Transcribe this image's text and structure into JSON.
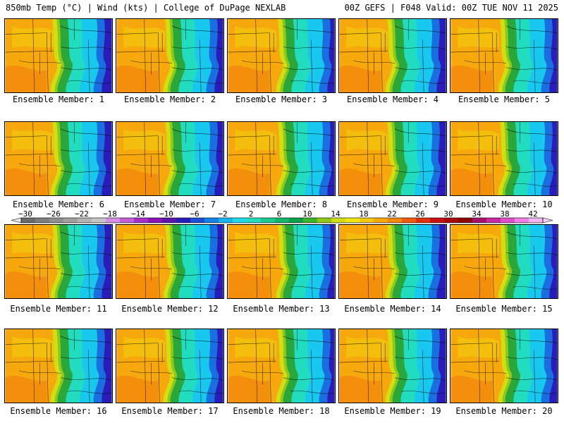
{
  "header": {
    "left": "850mb Temp (°C) | Wind (kts) | College of DuPage NEXLAB",
    "right": "00Z GEFS | F048 Valid: 00Z TUE NOV 11 2025"
  },
  "members": [
    "Ensemble Member: 1",
    "Ensemble Member: 2",
    "Ensemble Member: 3",
    "Ensemble Member: 4",
    "Ensemble Member: 5",
    "Ensemble Member: 6",
    "Ensemble Member: 7",
    "Ensemble Member: 8",
    "Ensemble Member: 9",
    "Ensemble Member: 10",
    "Ensemble Member: 11",
    "Ensemble Member: 12",
    "Ensemble Member: 13",
    "Ensemble Member: 14",
    "Ensemble Member: 15",
    "Ensemble Member: 16",
    "Ensemble Member: 17",
    "Ensemble Member: 18",
    "Ensemble Member: 19",
    "Ensemble Member: 20"
  ],
  "colorbar": {
    "labels": [
      "−30",
      "−26",
      "−22",
      "−18",
      "−14",
      "−10",
      "−6",
      "−2",
      "2",
      "6",
      "10",
      "14",
      "18",
      "22",
      "26",
      "30",
      "34",
      "38",
      "42"
    ],
    "colors": [
      "#6b6b6b",
      "#7d7d7d",
      "#8f8f8f",
      "#a1a1a1",
      "#b3b3b3",
      "#c5c5c5",
      "#d98ee6",
      "#c35fd6",
      "#aa2fc9",
      "#8a14b8",
      "#5a17a8",
      "#2a1cb8",
      "#1a4fd6",
      "#1582e6",
      "#18b4ee",
      "#1fd8e8",
      "#22dcc0",
      "#1ec98e",
      "#15b56a",
      "#0ea145",
      "#3cb52a",
      "#8ec91a",
      "#d2de14",
      "#f0e612",
      "#f4c80e",
      "#f6a80c",
      "#f4880c",
      "#ee5c0c",
      "#e0300e",
      "#c81212",
      "#a80a0a",
      "#8c0606",
      "#a8106e",
      "#c82aa4",
      "#e050cc",
      "#f080e6",
      "#f6b4f2"
    ]
  },
  "map_colors": {
    "west": "#f6a80c",
    "west_warm": "#f4880c",
    "west_cool": "#f4c80e",
    "band_yellow": "#d2de14",
    "band_green": "#2aa63a",
    "band_lightgreen": "#8ec91a",
    "teal": "#22dcc0",
    "cyan": "#18c8ee",
    "blue": "#1a6fe0",
    "darkblue": "#2a1cb8"
  }
}
